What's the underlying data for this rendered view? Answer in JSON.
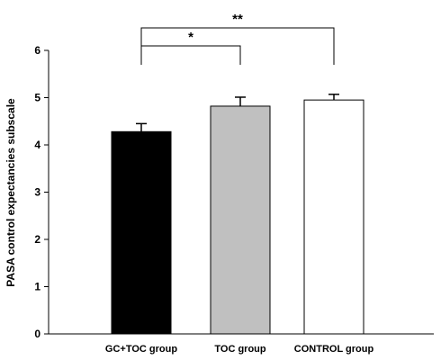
{
  "chart_data": {
    "type": "bar",
    "title": "",
    "xlabel": "",
    "ylabel": "PASA control expectancies subscale",
    "ylim": [
      0,
      6
    ],
    "yticks": [
      0,
      1,
      2,
      3,
      4,
      5,
      6
    ],
    "grid": false,
    "categories": [
      "GC+TOC group",
      "TOC group",
      "CONTROL group"
    ],
    "values": [
      4.28,
      4.82,
      4.95
    ],
    "errors": [
      0.17,
      0.19,
      0.12
    ],
    "colors": [
      "#000000",
      "#c0c0c0",
      "#ffffff"
    ],
    "significance": [
      {
        "from": 0,
        "to": 1,
        "label": "*"
      },
      {
        "from": 0,
        "to": 2,
        "label": "**"
      }
    ]
  }
}
